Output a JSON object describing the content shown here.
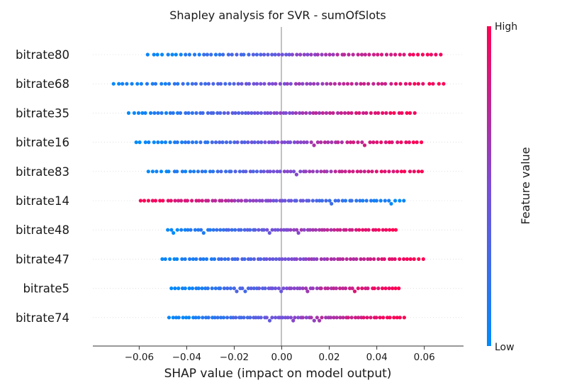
{
  "chart_data": {
    "type": "scatter",
    "subtype": "shap-beeswarm",
    "title": "Shapley analysis for SVR - sumOfSlots",
    "xlabel": "SHAP value (impact on model output)",
    "ylabel": "",
    "xlim": [
      -0.0795,
      0.0765
    ],
    "xticks": [
      -0.06,
      -0.04,
      -0.02,
      0.0,
      0.02,
      0.04,
      0.06
    ],
    "xtick_labels": [
      "−0.06",
      "−0.04",
      "−0.02",
      "0.00",
      "0.02",
      "0.04",
      "0.06"
    ],
    "grid": false,
    "zero_line": true,
    "colorbar": {
      "label": "Feature value",
      "high_label": "High",
      "low_label": "Low",
      "high_color": "#ff0052",
      "low_color": "#008bfb"
    },
    "features": [
      {
        "name": "bitrate80",
        "x_range": [
          -0.057,
          0.068
        ],
        "order": "asc",
        "n": 72
      },
      {
        "name": "bitrate68",
        "x_range": [
          -0.072,
          0.069
        ],
        "order": "asc",
        "n": 78
      },
      {
        "name": "bitrate35",
        "x_range": [
          -0.065,
          0.057
        ],
        "order": "asc",
        "n": 80
      },
      {
        "name": "bitrate16",
        "x_range": [
          -0.062,
          0.06
        ],
        "order": "asc",
        "n": 78
      },
      {
        "name": "bitrate83",
        "x_range": [
          -0.057,
          0.06
        ],
        "order": "asc",
        "n": 74
      },
      {
        "name": "bitrate14",
        "x_range": [
          -0.06,
          0.052
        ],
        "order": "desc",
        "n": 80
      },
      {
        "name": "bitrate48",
        "x_range": [
          -0.049,
          0.049
        ],
        "order": "asc",
        "n": 76
      },
      {
        "name": "bitrate47",
        "x_range": [
          -0.051,
          0.06
        ],
        "order": "asc",
        "n": 78
      },
      {
        "name": "bitrate5",
        "x_range": [
          -0.047,
          0.05
        ],
        "order": "asc",
        "n": 76
      },
      {
        "name": "bitrate74",
        "x_range": [
          -0.048,
          0.052
        ],
        "order": "asc",
        "n": 80
      }
    ]
  }
}
